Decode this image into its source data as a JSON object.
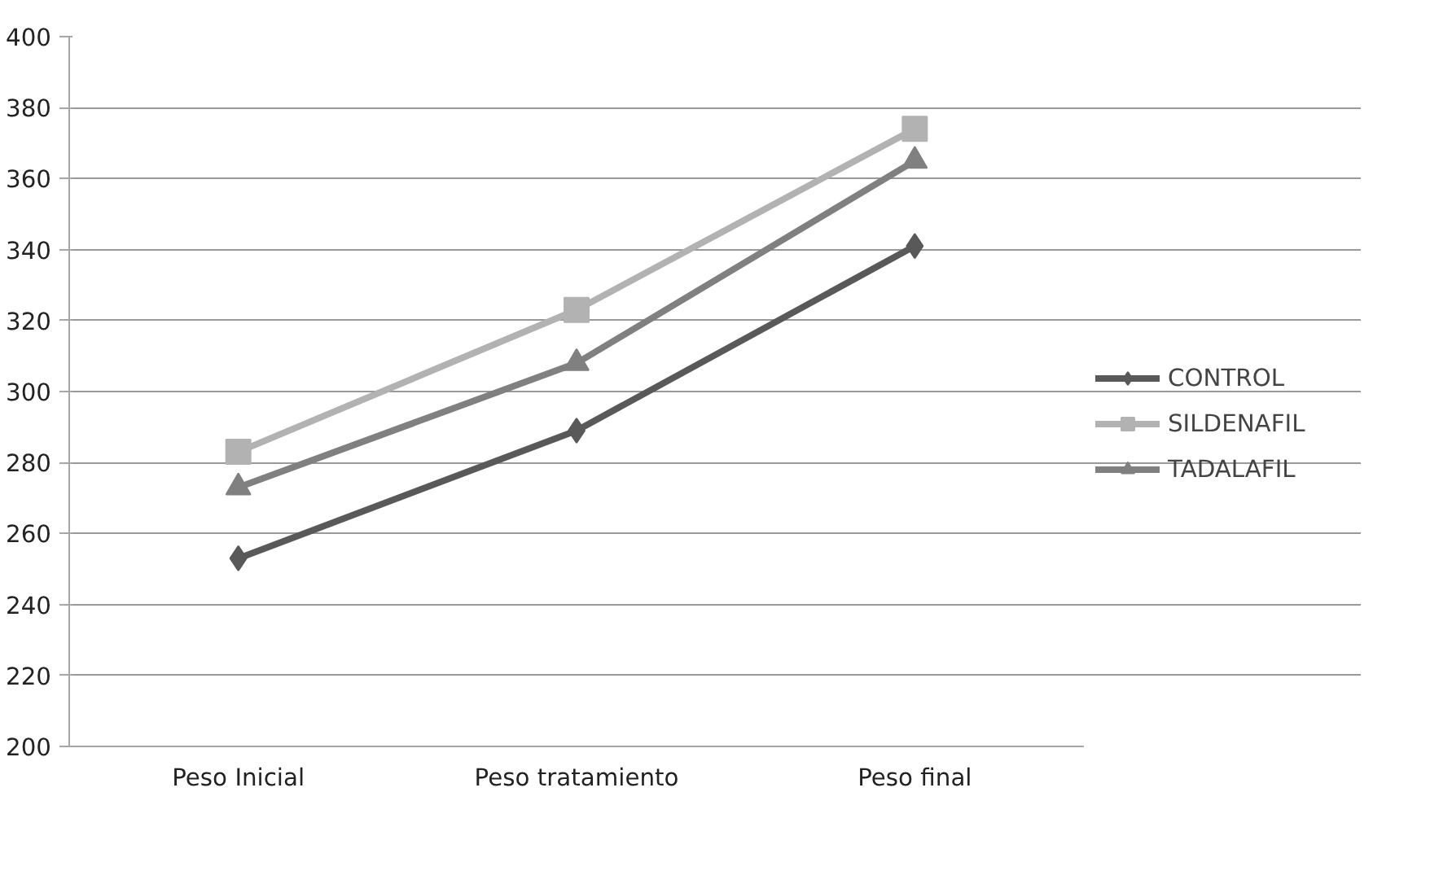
{
  "chart_data": {
    "type": "line",
    "categories": [
      "Peso Inicial",
      "Peso tratamiento",
      "Peso final"
    ],
    "series": [
      {
        "name": "CONTROL",
        "color": "#595959",
        "marker": "diamond",
        "values": [
          253,
          289,
          341
        ]
      },
      {
        "name": "SILDENAFIL",
        "color": "#b2b2b2",
        "marker": "square",
        "values": [
          283,
          323,
          374
        ]
      },
      {
        "name": "TADALAFIL",
        "color": "#808080",
        "marker": "triangle",
        "values": [
          273,
          308,
          365
        ]
      }
    ],
    "ylim": [
      200,
      400
    ],
    "yticks": [
      200,
      220,
      240,
      260,
      280,
      300,
      320,
      340,
      360,
      380,
      400
    ],
    "grid": "y",
    "legend": "right",
    "line_style": "solid"
  }
}
